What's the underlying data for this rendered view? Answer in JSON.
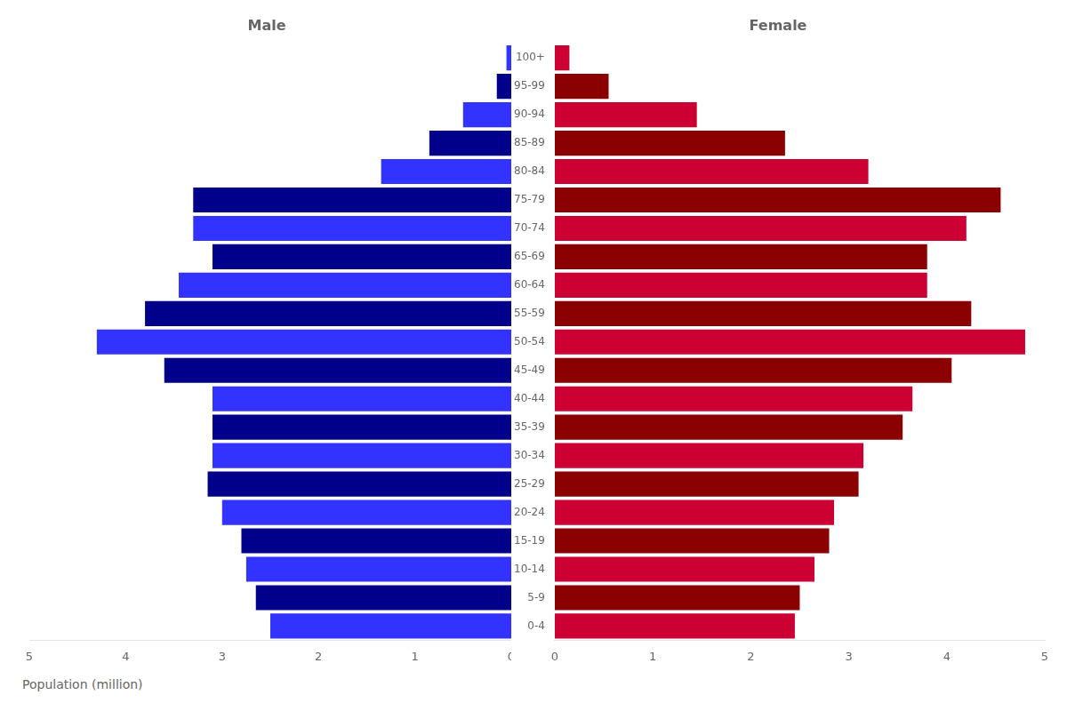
{
  "chart_data": [
    {
      "type": "bar",
      "orientation": "horizontal",
      "title": "Male",
      "xlabel": "Population (million)",
      "categories": [
        "0-4",
        "5-9",
        "10-14",
        "15-19",
        "20-24",
        "25-29",
        "30-34",
        "35-39",
        "40-44",
        "45-49",
        "50-54",
        "55-59",
        "60-64",
        "65-69",
        "70-74",
        "75-79",
        "80-84",
        "85-89",
        "90-94",
        "95-99",
        "100+"
      ],
      "values": [
        2.5,
        2.65,
        2.75,
        2.8,
        3.0,
        3.15,
        3.1,
        3.1,
        3.1,
        3.6,
        4.3,
        3.8,
        3.45,
        3.1,
        3.3,
        3.3,
        1.35,
        0.85,
        0.5,
        0.15,
        0.05
      ],
      "colors": [
        "#3333FF",
        "#00008B",
        "#3333FF",
        "#00008B",
        "#3333FF",
        "#00008B",
        "#3333FF",
        "#00008B",
        "#3333FF",
        "#00008B",
        "#3333FF",
        "#00008B",
        "#3333FF",
        "#00008B",
        "#3333FF",
        "#00008B",
        "#3333FF",
        "#00008B",
        "#3333FF",
        "#00008B",
        "#3333FF"
      ],
      "xlim": [
        5,
        0
      ],
      "xticks": [
        0,
        1,
        2,
        3,
        4,
        5
      ],
      "grid": false,
      "tick_labels": "x"
    },
    {
      "type": "bar",
      "orientation": "horizontal",
      "title": "Female",
      "categories": [
        "0-4",
        "5-9",
        "10-14",
        "15-19",
        "20-24",
        "25-29",
        "30-34",
        "35-39",
        "40-44",
        "45-49",
        "50-54",
        "55-59",
        "60-64",
        "65-69",
        "70-74",
        "75-79",
        "80-84",
        "85-89",
        "90-94",
        "95-99",
        "100+"
      ],
      "values": [
        2.45,
        2.5,
        2.65,
        2.8,
        2.85,
        3.1,
        3.15,
        3.55,
        3.65,
        4.05,
        4.8,
        4.25,
        3.8,
        3.8,
        4.2,
        4.55,
        3.2,
        2.35,
        1.45,
        0.55,
        0.15
      ],
      "colors": [
        "#CC0033",
        "#8B0000",
        "#CC0033",
        "#8B0000",
        "#CC0033",
        "#8B0000",
        "#CC0033",
        "#8B0000",
        "#CC0033",
        "#8B0000",
        "#CC0033",
        "#8B0000",
        "#CC0033",
        "#8B0000",
        "#CC0033",
        "#8B0000",
        "#CC0033",
        "#8B0000",
        "#CC0033",
        "#8B0000",
        "#CC0033"
      ],
      "xlim": [
        0,
        5
      ],
      "xticks": [
        0,
        1,
        2,
        3,
        4,
        5
      ],
      "grid": false
    }
  ]
}
